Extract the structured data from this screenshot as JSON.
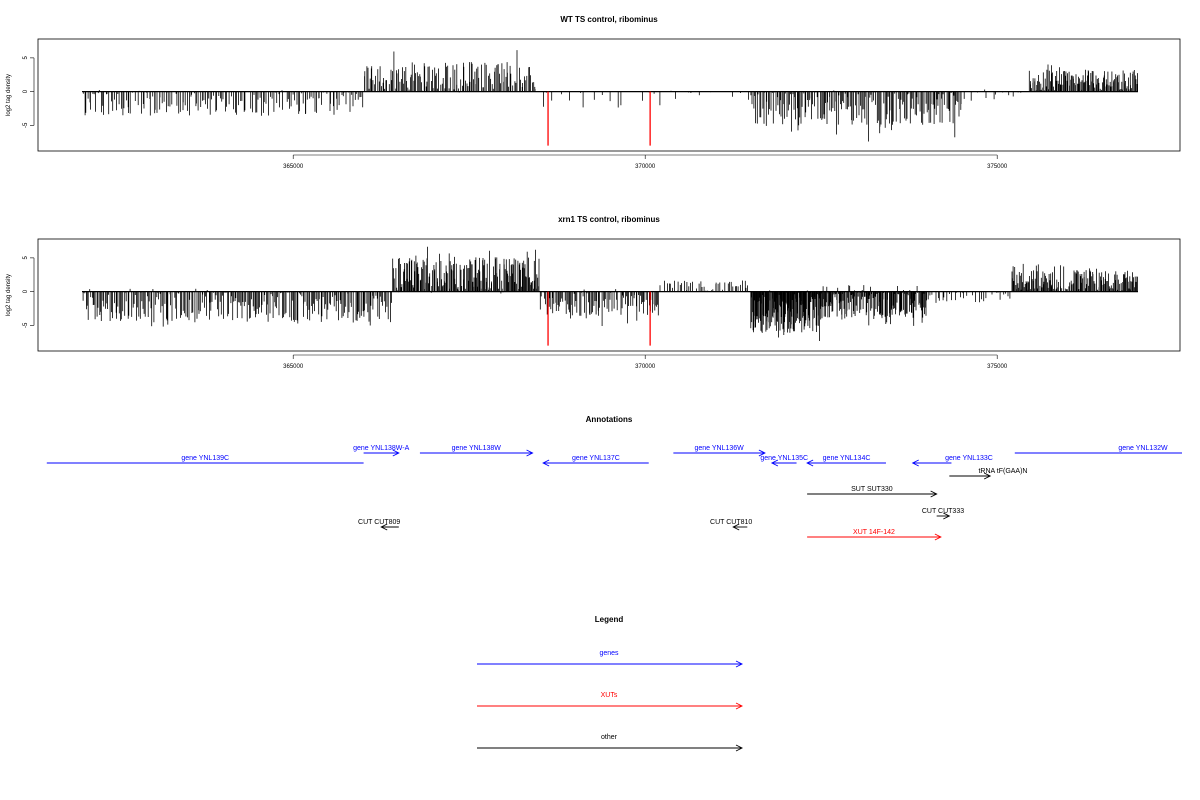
{
  "colors": {
    "gene": "#0000ff",
    "xut": "#ff0000",
    "other": "#000000",
    "highlight": "#ff0000",
    "bars": "#000000"
  },
  "chart_data": [
    {
      "type": "bar",
      "title": "WT TS control, ribominus",
      "ylabel": "log2 tag density",
      "xlim": [
        361500,
        377700
      ],
      "ylim": [
        -8.5,
        7.5
      ],
      "yticks": [
        -5,
        0,
        5
      ],
      "xticks": [
        365000,
        370000,
        375000
      ],
      "highlight_x": [
        368620,
        370070
      ],
      "highlight_y": -8,
      "segments": [
        {
          "start": 362000,
          "end": 366000,
          "mean": -1.6,
          "amp": 1.1,
          "peak": 3.8,
          "n": 170
        },
        {
          "start": 366000,
          "end": 368450,
          "mean": 2.1,
          "amp": 1.3,
          "peak": 6.4,
          "n": 150
        },
        {
          "start": 368450,
          "end": 371500,
          "mean": -0.8,
          "amp": 0.9,
          "peak": 2.3,
          "n": 28
        },
        {
          "start": 371500,
          "end": 374500,
          "mean": -2.3,
          "amp": 1.5,
          "peak": 7.6,
          "n": 190
        },
        {
          "start": 374500,
          "end": 375450,
          "mean": -0.6,
          "amp": 0.6,
          "peak": 1.6,
          "n": 14
        },
        {
          "start": 375450,
          "end": 377000,
          "mean": 1.7,
          "amp": 0.9,
          "peak": 4.2,
          "n": 130
        }
      ]
    },
    {
      "type": "bar",
      "title": "xrn1 TS control, ribominus",
      "ylabel": "log2 tag density",
      "xlim": [
        361500,
        377700
      ],
      "ylim": [
        -8.5,
        7.5
      ],
      "yticks": [
        -5,
        0,
        5
      ],
      "xticks": [
        365000,
        370000,
        375000
      ],
      "highlight_x": [
        368620,
        370070
      ],
      "highlight_y": -8,
      "segments": [
        {
          "start": 362000,
          "end": 366400,
          "mean": -2.1,
          "amp": 1.4,
          "peak": 5.2,
          "n": 260
        },
        {
          "start": 366400,
          "end": 368500,
          "mean": 2.4,
          "amp": 1.5,
          "peak": 6.7,
          "n": 200
        },
        {
          "start": 368500,
          "end": 370200,
          "mean": -1.6,
          "amp": 1.1,
          "peak": 5.4,
          "n": 110
        },
        {
          "start": 370200,
          "end": 371500,
          "mean": 0.6,
          "amp": 0.6,
          "peak": 2.6,
          "n": 50
        },
        {
          "start": 371500,
          "end": 372500,
          "mean": -2.9,
          "amp": 1.8,
          "peak": 8.2,
          "n": 170
        },
        {
          "start": 372500,
          "end": 374000,
          "mean": -1.5,
          "amp": 1.4,
          "peak": 5.2,
          "n": 190
        },
        {
          "start": 374000,
          "end": 375200,
          "mean": -0.5,
          "amp": 0.6,
          "peak": 1.8,
          "n": 35
        },
        {
          "start": 375200,
          "end": 377000,
          "mean": 1.6,
          "amp": 0.9,
          "peak": 4.2,
          "n": 160
        }
      ]
    }
  ],
  "annotations": {
    "title": "Annotations",
    "features": [
      {
        "label": "gene YNL139C",
        "start": 361500,
        "end": 366000,
        "strand": "-",
        "class": "gene",
        "row": 1,
        "arrow": false
      },
      {
        "label": "gene YNL138W-A",
        "start": 366000,
        "end": 366500,
        "strand": "+",
        "class": "gene",
        "row": 0
      },
      {
        "label": "gene YNL138W",
        "start": 366800,
        "end": 368400,
        "strand": "+",
        "class": "gene",
        "row": 0
      },
      {
        "label": "gene YNL137C",
        "start": 368550,
        "end": 370050,
        "strand": "-",
        "class": "gene",
        "row": 1
      },
      {
        "label": "gene YNL136W",
        "start": 370400,
        "end": 371700,
        "strand": "+",
        "class": "gene",
        "row": 0
      },
      {
        "label": "gene YNL135C",
        "start": 371800,
        "end": 372150,
        "strand": "-",
        "class": "gene",
        "row": 1
      },
      {
        "label": "gene YNL134C",
        "start": 372300,
        "end": 373420,
        "strand": "-",
        "class": "gene",
        "row": 1
      },
      {
        "label": "gene YNL133C",
        "start": 373800,
        "end": 374350,
        "strand": "-",
        "class": "gene",
        "row": 1
      },
      {
        "label": "gene YNL132W",
        "start": 375250,
        "end": 377700,
        "strand": "+",
        "class": "gene",
        "row": 0,
        "arrow": false
      },
      {
        "label": "tRNA tF(GAA)N",
        "start": 374320,
        "end": 374900,
        "strand": "+",
        "class": "other",
        "row": 2
      },
      {
        "label": "SUT SUT330",
        "start": 372300,
        "end": 374140,
        "strand": "+",
        "class": "other",
        "row": 3
      },
      {
        "label": "CUT CUT333",
        "start": 374140,
        "end": 374320,
        "strand": "+",
        "class": "other",
        "row": 4
      },
      {
        "label": "CUT CUT809",
        "start": 366250,
        "end": 366500,
        "strand": "-",
        "class": "other",
        "row": 5
      },
      {
        "label": "CUT CUT810",
        "start": 371250,
        "end": 371450,
        "strand": "-",
        "class": "other",
        "row": 5
      },
      {
        "label": "XUT 14F-142",
        "start": 372300,
        "end": 374200,
        "strand": "+",
        "class": "xut",
        "row": 6
      }
    ]
  },
  "legend": {
    "title": "Legend",
    "items": [
      {
        "label": "genes",
        "class": "gene"
      },
      {
        "label": "XUTs",
        "class": "xut"
      },
      {
        "label": "other",
        "class": "other"
      }
    ]
  }
}
